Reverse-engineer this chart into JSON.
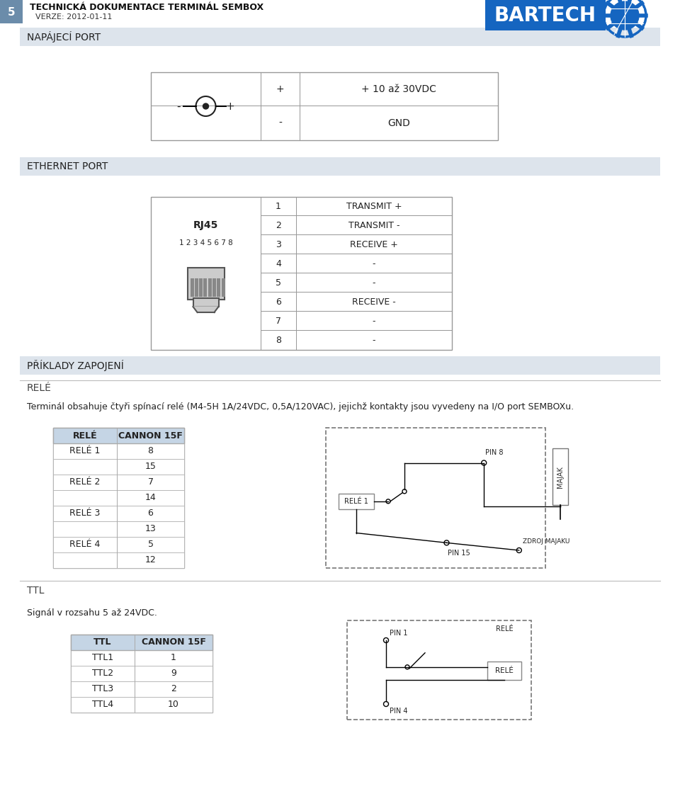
{
  "page_num": "5",
  "title_main": "TECHNICKÁ DOKUMENTACE TERMINÁL SEMBOX",
  "title_sub": "VERZE: 2012-01-11",
  "section_bg": "#dde4ec",
  "section_border": "#6b8caa",
  "napajeci_port_title": "NAPÁJECÍ PORT",
  "napajeci_rows": [
    [
      "+",
      "+ 10 až 30VDC"
    ],
    [
      "-",
      "GND"
    ]
  ],
  "ethernet_port_title": "ETHERNET PORT",
  "rj45_label": "RJ45",
  "rj45_sub": "1 2 3 4 5 6 7 8",
  "rj45_rows": [
    [
      "1",
      "TRANSMIT +"
    ],
    [
      "2",
      "TRANSMIT -"
    ],
    [
      "3",
      "RECEIVE +"
    ],
    [
      "4",
      "-"
    ],
    [
      "5",
      "-"
    ],
    [
      "6",
      "RECEIVE -"
    ],
    [
      "7",
      "-"
    ],
    [
      "8",
      "-"
    ]
  ],
  "priklady_title": "PŘÍKLADY ZAPOJENÍ",
  "rele_section_title": "RELÉ",
  "rele_desc": "Terminál obsahuje čtyři spínací relé (M4-5H 1A/24VDC, 0,5A/120VAC), jejichž kontakty jsou vyvedeny na I/O port SEMBOXu.",
  "rele_table_headers": [
    "RELÉ",
    "CANNON 15F"
  ],
  "rele_table_rows": [
    [
      "RELÉ 1",
      "8"
    ],
    [
      "",
      "15"
    ],
    [
      "RELÉ 2",
      "7"
    ],
    [
      "",
      "14"
    ],
    [
      "RELÉ 3",
      "6"
    ],
    [
      "",
      "13"
    ],
    [
      "RELÉ 4",
      "5"
    ],
    [
      "",
      "12"
    ]
  ],
  "ttl_section_title": "TTL",
  "ttl_desc": "Signál v rozsahu 5 až 24VDC.",
  "ttl_table_headers": [
    "TTL",
    "CANNON 15F"
  ],
  "ttl_table_rows": [
    [
      "TTL1",
      "1"
    ],
    [
      "TTL2",
      "9"
    ],
    [
      "TTL3",
      "2"
    ],
    [
      "TTL4",
      "10"
    ]
  ],
  "table_header_bg": "#c5d5e5",
  "table_border": "#888888",
  "text_dark": "#222222",
  "white": "#ffffff",
  "light_gray": "#d0d0d0",
  "page_num_bg": "#6b8caa"
}
